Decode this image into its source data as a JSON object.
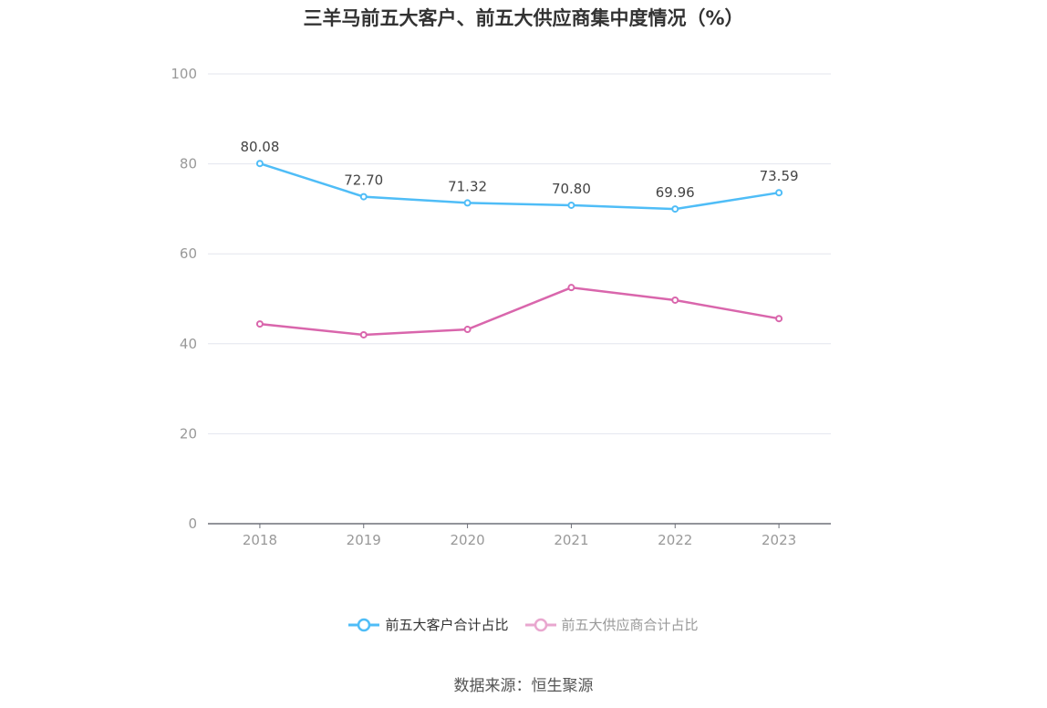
{
  "chart_data": {
    "type": "line",
    "title": "三羊马前五大客户、前五大供应商集中度情况（%）",
    "categories": [
      "2018",
      "2019",
      "2020",
      "2021",
      "2022",
      "2023"
    ],
    "ylim": [
      0,
      100
    ],
    "yticks": [
      "0",
      "20",
      "40",
      "60",
      "80",
      "100"
    ],
    "grid": true,
    "legend_placement": "bottom",
    "series": [
      {
        "name": "前五大客户合计占比",
        "color": "#4fbdf7",
        "values": [
          80.08,
          72.7,
          71.32,
          70.8,
          69.96,
          73.59
        ],
        "labels": [
          "80.08",
          "72.70",
          "71.32",
          "70.80",
          "69.96",
          "73.59"
        ]
      },
      {
        "name": "前五大供应商合计占比",
        "color": "#d966ac",
        "legend_color": "#e9a7cf",
        "values": [
          44.4,
          42.0,
          43.2,
          52.5,
          49.7,
          45.6
        ]
      }
    ]
  },
  "source": "数据来源：恒生聚源"
}
